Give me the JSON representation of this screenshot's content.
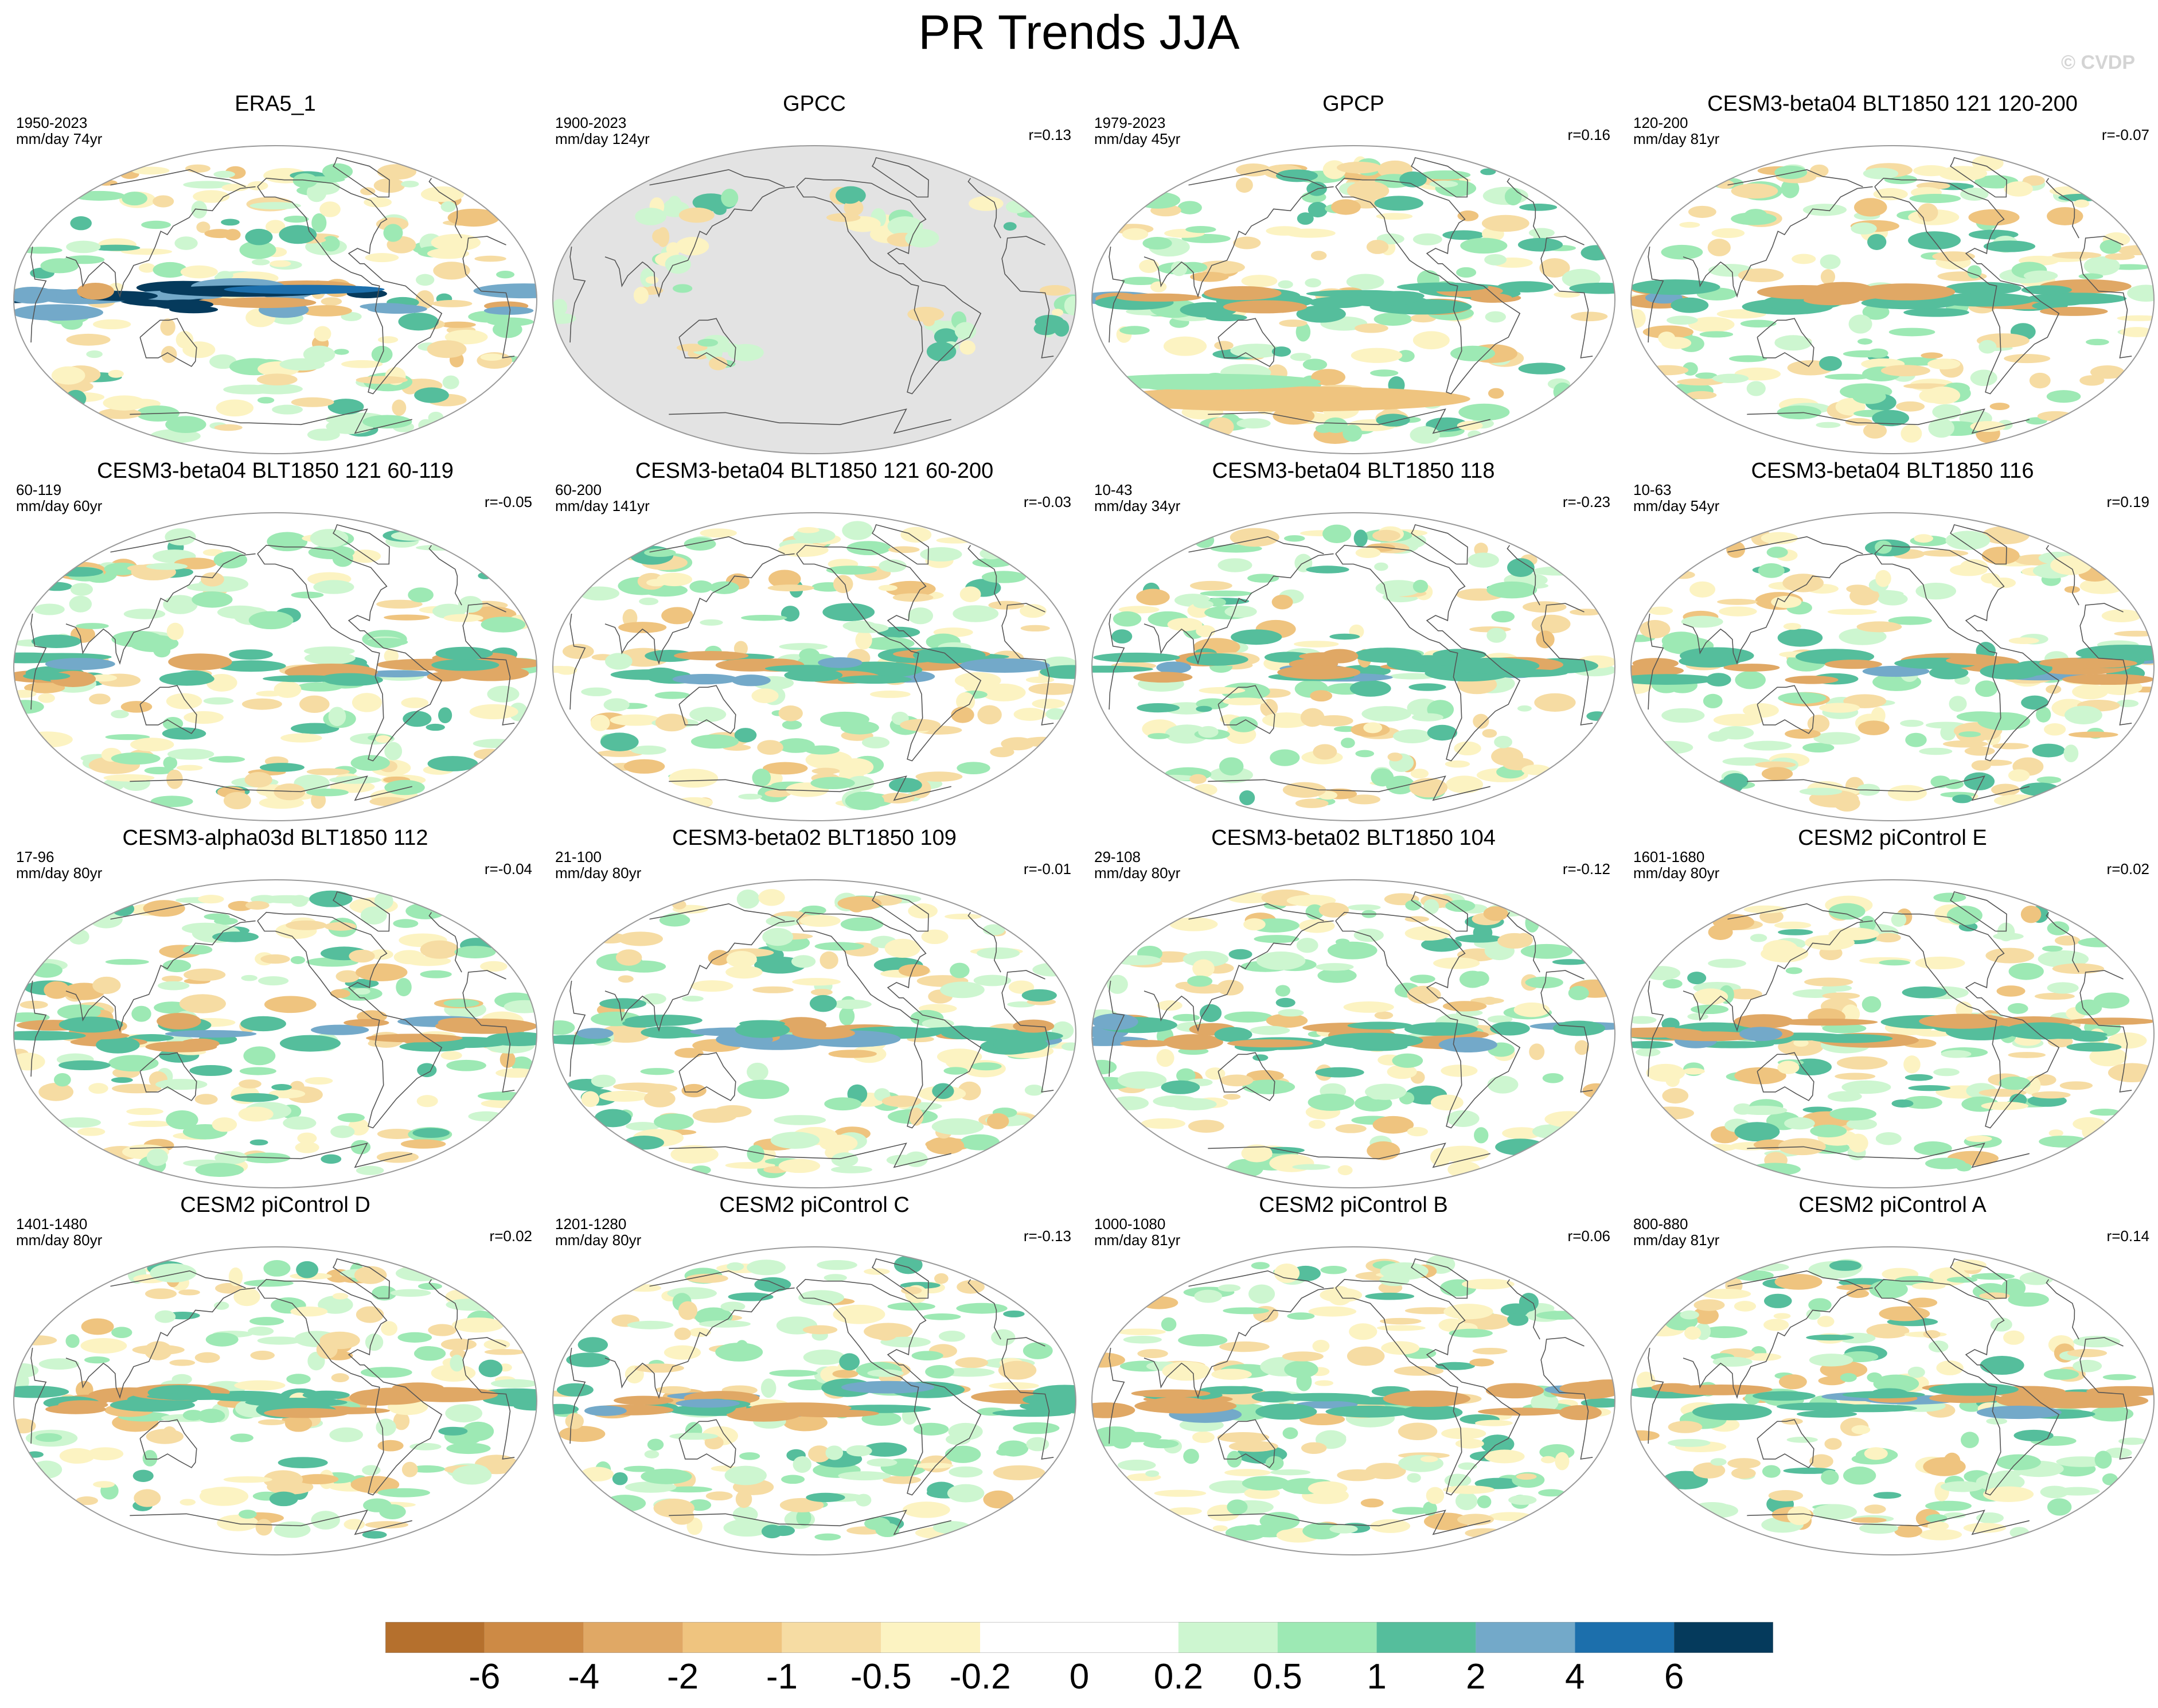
{
  "title": "PR Trends JJA",
  "watermark": "© CVDP",
  "colors": {
    "ocean": "#ffffff",
    "masked": "#e3e3e3",
    "coast": "#555555",
    "border": "#9a9a9a"
  },
  "panels": [
    {
      "title": "ERA5_1",
      "period": "1950-2023",
      "units": "mm/day 74yr",
      "r": "",
      "pattern": "era5"
    },
    {
      "title": "GPCC",
      "period": "1900-2023",
      "units": "mm/day 124yr",
      "r": "r=0.13",
      "pattern": "gpcc"
    },
    {
      "title": "GPCP",
      "period": "1979-2023",
      "units": "mm/day 45yr",
      "r": "r=0.16",
      "pattern": "gpcp"
    },
    {
      "title": "CESM3-beta04 BLT1850 121 120-200",
      "period": "120-200",
      "units": "mm/day 81yr",
      "r": "r=-0.07",
      "pattern": "model"
    },
    {
      "title": "CESM3-beta04 BLT1850 121 60-119",
      "period": "60-119",
      "units": "mm/day 60yr",
      "r": "r=-0.05",
      "pattern": "model"
    },
    {
      "title": "CESM3-beta04 BLT1850 121 60-200",
      "period": "60-200",
      "units": "mm/day 141yr",
      "r": "r=-0.03",
      "pattern": "model"
    },
    {
      "title": "CESM3-beta04 BLT1850 118",
      "period": "10-43",
      "units": "mm/day 34yr",
      "r": "r=-0.23",
      "pattern": "model"
    },
    {
      "title": "CESM3-beta04 BLT1850 116",
      "period": "10-63",
      "units": "mm/day 54yr",
      "r": "r=0.19",
      "pattern": "model"
    },
    {
      "title": "CESM3-alpha03d BLT1850 112",
      "period": "17-96",
      "units": "mm/day 80yr",
      "r": "r=-0.04",
      "pattern": "model"
    },
    {
      "title": "CESM3-beta02 BLT1850 109",
      "period": "21-100",
      "units": "mm/day 80yr",
      "r": "r=-0.01",
      "pattern": "model"
    },
    {
      "title": "CESM3-beta02 BLT1850 104",
      "period": "29-108",
      "units": "mm/day 80yr",
      "r": "r=-0.12",
      "pattern": "model"
    },
    {
      "title": "CESM2 piControl E",
      "period": "1601-1680",
      "units": "mm/day 80yr",
      "r": "r=0.02",
      "pattern": "model"
    },
    {
      "title": "CESM2 piControl D",
      "period": "1401-1480",
      "units": "mm/day 80yr",
      "r": "r=0.02",
      "pattern": "model"
    },
    {
      "title": "CESM2 piControl C",
      "period": "1201-1280",
      "units": "mm/day 80yr",
      "r": "r=-0.13",
      "pattern": "model"
    },
    {
      "title": "CESM2 piControl B",
      "period": "1000-1080",
      "units": "mm/day 81yr",
      "r": "r=0.06",
      "pattern": "model"
    },
    {
      "title": "CESM2 piControl A",
      "period": "800-880",
      "units": "mm/day 81yr",
      "r": "r=0.14",
      "pattern": "model"
    }
  ],
  "colorbar": {
    "colors": [
      "#b5702d",
      "#cd8a45",
      "#e0a865",
      "#efc47f",
      "#f6dca3",
      "#fcf3c2",
      "#ffffff",
      "#ffffff",
      "#cdf6d0",
      "#9de9b4",
      "#55be9c",
      "#73a9c9",
      "#1c6fac",
      "#053a5c"
    ],
    "labels": [
      "-6",
      "-4",
      "-2",
      "-1",
      "-0.5",
      "-0.2",
      "0",
      "0.2",
      "0.5",
      "1",
      "2",
      "4",
      "6"
    ]
  }
}
